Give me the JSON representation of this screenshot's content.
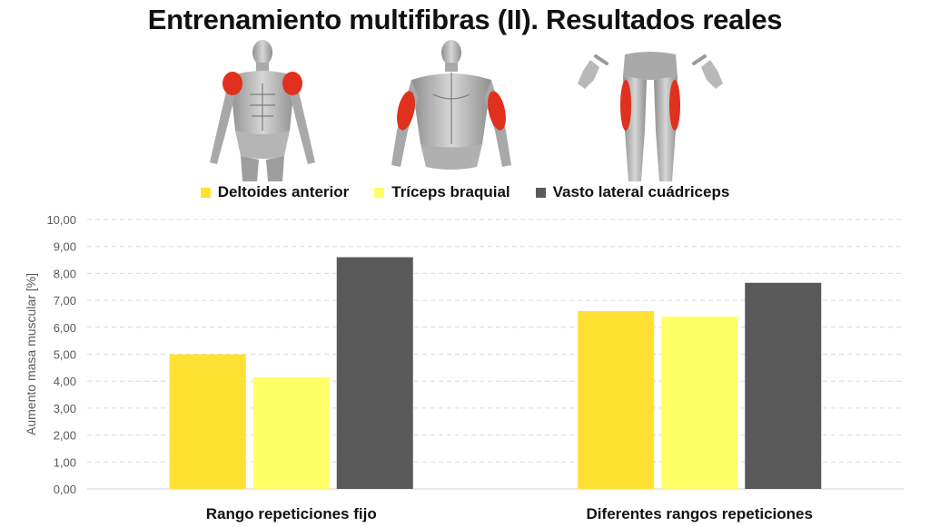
{
  "title": "Entrenamiento multifibras (II). Resultados reales",
  "figure_icons": [
    "front-muscles-deltoid-figure",
    "back-muscles-triceps-figure",
    "leg-muscles-vastus-lateralis-figure"
  ],
  "colors": {
    "deltoides": "#FFE033",
    "triceps": "#FFFF66",
    "vasto": "#595959",
    "muscle_highlight": "#E0301E",
    "grid": "#D9D9D9",
    "axis_text": "#595959"
  },
  "chart_data": {
    "type": "bar",
    "categories": [
      "Rango repeticiones fijo",
      "Diferentes rangos repeticiones"
    ],
    "series": [
      {
        "name": "Deltoides anterior",
        "values": [
          5.0,
          6.6
        ]
      },
      {
        "name": "Tríceps braquial",
        "values": [
          4.15,
          6.4
        ]
      },
      {
        "name": "Vasto lateral cuádriceps",
        "values": [
          8.6,
          7.65
        ]
      }
    ],
    "ylabel": "Aumento masa muscular [%]",
    "ylim": [
      0,
      10
    ],
    "yticks": [
      "0,00",
      "1,00",
      "2,00",
      "3,00",
      "4,00",
      "5,00",
      "6,00",
      "7,00",
      "8,00",
      "9,00",
      "10,00"
    ],
    "grid": true,
    "legend_position": "top-center"
  }
}
